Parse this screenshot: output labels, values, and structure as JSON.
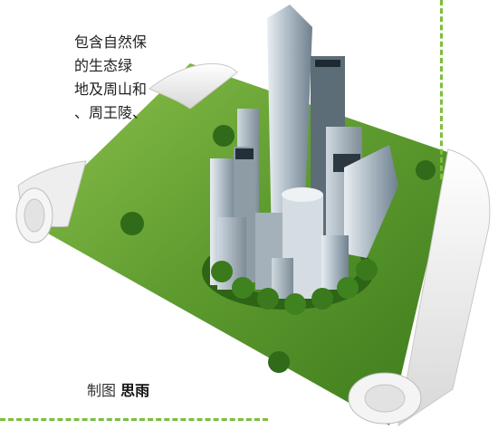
{
  "text_lines": [
    "包含自然保",
    "的生态绿",
    "地及周山和",
    "、周王陵、"
  ],
  "credit": {
    "label": "制图",
    "author": "思雨"
  },
  "colors": {
    "accent_dash": "#7cbf3c",
    "grass_dark": "#3f7d1f",
    "grass_light": "#8fc44f",
    "paper": "#f2f2f2"
  }
}
